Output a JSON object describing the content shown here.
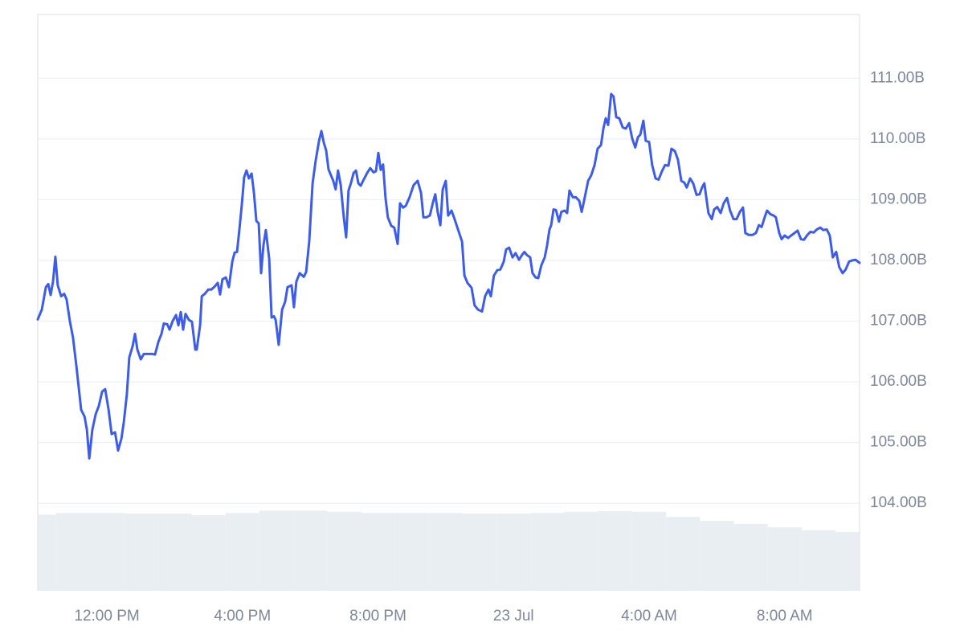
{
  "chart_data": {
    "type": "line",
    "x": [
      9.96,
      10.08,
      10.2,
      10.27,
      10.34,
      10.41,
      10.48,
      10.55,
      10.65,
      10.74,
      10.81,
      10.91,
      11.0,
      11.1,
      11.19,
      11.24,
      11.34,
      11.41,
      11.48,
      11.57,
      11.67,
      11.76,
      11.86,
      11.95,
      12.05,
      12.14,
      12.24,
      12.33,
      12.43,
      12.5,
      12.59,
      12.66,
      12.76,
      12.83,
      12.9,
      13.0,
      13.09,
      13.33,
      13.42,
      13.52,
      13.61,
      13.68,
      13.78,
      13.85,
      13.94,
      14.04,
      14.11,
      14.18,
      14.25,
      14.32,
      14.42,
      14.51,
      14.61,
      14.65,
      14.75,
      14.8,
      14.89,
      14.99,
      15.08,
      15.18,
      15.27,
      15.34,
      15.41,
      15.51,
      15.6,
      15.7,
      15.77,
      15.84,
      15.91,
      15.98,
      16.05,
      16.12,
      16.19,
      16.27,
      16.34,
      16.41,
      16.48,
      16.55,
      16.62,
      16.69,
      16.79,
      16.86,
      16.93,
      16.98,
      17.07,
      17.17,
      17.26,
      17.33,
      17.45,
      17.52,
      17.59,
      17.69,
      17.81,
      17.88,
      17.97,
      18.07,
      18.16,
      18.26,
      18.33,
      18.4,
      18.47,
      18.54,
      18.68,
      18.75,
      18.82,
      18.9,
      18.99,
      19.06,
      19.13,
      19.2,
      19.28,
      19.35,
      19.42,
      19.49,
      19.56,
      19.68,
      19.77,
      19.87,
      19.94,
      20.01,
      20.08,
      20.15,
      20.22,
      20.29,
      20.39,
      20.48,
      20.58,
      20.65,
      20.74,
      20.82,
      20.93,
      21.05,
      21.17,
      21.27,
      21.34,
      21.43,
      21.53,
      21.62,
      21.69,
      21.76,
      21.84,
      21.91,
      22.0,
      22.07,
      22.17,
      22.26,
      22.36,
      22.48,
      22.55,
      22.64,
      22.76,
      22.85,
      22.95,
      23.07,
      23.16,
      23.26,
      23.33,
      23.42,
      23.52,
      23.61,
      23.71,
      23.78,
      23.87,
      23.97,
      24.06,
      24.16,
      24.25,
      24.32,
      24.39,
      24.49,
      24.56,
      24.65,
      24.73,
      24.82,
      24.92,
      24.99,
      25.06,
      25.11,
      25.18,
      25.25,
      25.34,
      25.41,
      25.51,
      25.58,
      25.65,
      25.75,
      25.84,
      25.94,
      26.01,
      26.08,
      26.2,
      26.29,
      26.39,
      26.48,
      26.58,
      26.65,
      26.72,
      26.79,
      26.88,
      26.95,
      27.03,
      27.12,
      27.22,
      27.31,
      27.41,
      27.5,
      27.59,
      27.67,
      27.74,
      27.83,
      27.9,
      28.0,
      28.09,
      28.19,
      28.28,
      28.38,
      28.47,
      28.57,
      28.66,
      28.76,
      28.85,
      28.95,
      29.04,
      29.11,
      29.21,
      29.3,
      29.4,
      29.49,
      29.56,
      29.63,
      29.75,
      29.85,
      29.92,
      30.01,
      30.11,
      30.2,
      30.3,
      30.39,
      30.49,
      30.58,
      30.68,
      30.77,
      30.84,
      30.94,
      31.05,
      31.15,
      31.24,
      31.32,
      31.41,
      31.48,
      31.58,
      31.67,
      31.74,
      31.84,
      31.91,
      32.0,
      32.1,
      32.19,
      32.29,
      32.38,
      32.48,
      32.57,
      32.67,
      32.76,
      32.86,
      32.95,
      33.05,
      33.14,
      33.24,
      33.33,
      33.42,
      33.52,
      33.61,
      33.71,
      33.8,
      33.9,
      33.99,
      34.09,
      34.21
    ],
    "values": [
      107.03,
      107.19,
      107.56,
      107.61,
      107.43,
      107.65,
      108.06,
      107.59,
      107.41,
      107.45,
      107.36,
      106.99,
      106.73,
      106.26,
      105.8,
      105.54,
      105.43,
      105.21,
      104.74,
      105.21,
      105.47,
      105.6,
      105.84,
      105.88,
      105.54,
      105.14,
      105.17,
      104.87,
      105.07,
      105.34,
      105.8,
      106.4,
      106.59,
      106.79,
      106.53,
      106.37,
      106.46,
      106.46,
      106.45,
      106.66,
      106.79,
      106.96,
      106.95,
      106.86,
      107.0,
      107.1,
      106.93,
      107.15,
      106.86,
      107.12,
      107.02,
      106.99,
      106.53,
      106.53,
      106.93,
      107.41,
      107.45,
      107.52,
      107.52,
      107.57,
      107.63,
      107.44,
      107.69,
      107.72,
      107.56,
      107.98,
      108.13,
      108.14,
      108.51,
      108.91,
      109.37,
      109.48,
      109.35,
      109.43,
      109.11,
      108.65,
      108.61,
      107.79,
      108.25,
      108.5,
      108.02,
      107.06,
      107.08,
      107.02,
      106.61,
      107.19,
      107.32,
      107.56,
      107.59,
      107.23,
      107.65,
      107.79,
      107.73,
      107.81,
      108.31,
      109.27,
      109.64,
      109.97,
      110.13,
      109.94,
      109.81,
      109.5,
      109.31,
      109.17,
      109.48,
      109.24,
      108.71,
      108.38,
      109.15,
      109.27,
      109.44,
      109.48,
      109.27,
      109.23,
      109.31,
      109.44,
      109.52,
      109.45,
      109.47,
      109.77,
      109.49,
      109.58,
      109.04,
      108.71,
      108.57,
      108.54,
      108.27,
      108.94,
      108.87,
      108.9,
      109.04,
      109.24,
      109.31,
      109.11,
      108.71,
      108.71,
      108.74,
      108.95,
      109.09,
      108.8,
      108.58,
      109.17,
      109.31,
      108.74,
      108.82,
      108.68,
      108.51,
      108.31,
      107.75,
      107.63,
      107.55,
      107.26,
      107.19,
      107.16,
      107.41,
      107.52,
      107.41,
      107.75,
      107.84,
      107.85,
      107.98,
      108.18,
      108.21,
      108.05,
      108.12,
      108.01,
      108.09,
      108.14,
      108.09,
      108.05,
      107.79,
      107.72,
      107.71,
      107.92,
      108.05,
      108.25,
      108.51,
      108.58,
      108.84,
      108.83,
      108.64,
      108.8,
      108.82,
      108.78,
      109.15,
      109.04,
      109.04,
      108.98,
      108.8,
      108.98,
      109.31,
      109.4,
      109.57,
      109.84,
      109.9,
      110.17,
      110.34,
      110.23,
      110.74,
      110.7,
      110.36,
      110.34,
      110.19,
      110.17,
      110.26,
      110.01,
      109.86,
      110.03,
      110.07,
      110.3,
      109.97,
      109.95,
      109.57,
      109.35,
      109.33,
      109.47,
      109.57,
      109.56,
      109.84,
      109.8,
      109.66,
      109.31,
      109.28,
      109.2,
      109.35,
      109.27,
      109.08,
      109.09,
      109.2,
      109.27,
      108.78,
      108.68,
      108.84,
      108.88,
      108.78,
      108.94,
      109.03,
      108.82,
      108.68,
      108.68,
      108.8,
      108.87,
      108.45,
      108.42,
      108.42,
      108.45,
      108.58,
      108.55,
      108.71,
      108.82,
      108.76,
      108.74,
      108.71,
      108.45,
      108.35,
      108.41,
      108.37,
      108.41,
      108.45,
      108.49,
      108.35,
      108.34,
      108.42,
      108.47,
      108.46,
      108.51,
      108.54,
      108.5,
      108.51,
      108.41,
      108.05,
      108.14,
      107.89,
      107.79,
      107.85,
      107.98,
      108.0,
      108.01,
      107.96
    ],
    "color": "#3d5ce8",
    "xlim": [
      9.96,
      34.21
    ],
    "xticks": [
      {
        "value": 12,
        "label": "12:00 PM"
      },
      {
        "value": 16,
        "label": "4:00 PM"
      },
      {
        "value": 20,
        "label": "8:00 PM"
      },
      {
        "value": 24,
        "label": "23 Jul"
      },
      {
        "value": 28,
        "label": "4:00 AM"
      },
      {
        "value": 32,
        "label": "8:00 AM"
      }
    ],
    "ylim": [
      102.56,
      112.05
    ],
    "yticks": [
      {
        "value": 104,
        "label": "104.00B"
      },
      {
        "value": 105,
        "label": "105.00B"
      },
      {
        "value": 106,
        "label": "106.00B"
      },
      {
        "value": 107,
        "label": "107.00B"
      },
      {
        "value": 108,
        "label": "108.00B"
      },
      {
        "value": 109,
        "label": "109.00B"
      },
      {
        "value": 110,
        "label": "110.00B"
      },
      {
        "value": 111,
        "label": "111.00B"
      }
    ],
    "grid": true,
    "volume": {
      "color": "#e9eef3",
      "x": [
        10,
        11,
        12,
        13,
        14,
        15,
        16,
        17,
        18,
        19,
        20,
        21,
        22,
        23,
        24,
        25,
        26,
        27,
        28,
        29,
        30,
        31,
        32,
        33,
        34
      ],
      "values": [
        13.2,
        13.5,
        13.5,
        13.4,
        13.4,
        13.1,
        13.5,
        13.9,
        13.9,
        13.7,
        13.5,
        13.5,
        13.5,
        13.4,
        13.4,
        13.5,
        13.7,
        13.8,
        13.7,
        12.8,
        12.1,
        11.6,
        11.0,
        10.5,
        10.2
      ],
      "ylim": [
        0,
        100
      ]
    }
  }
}
